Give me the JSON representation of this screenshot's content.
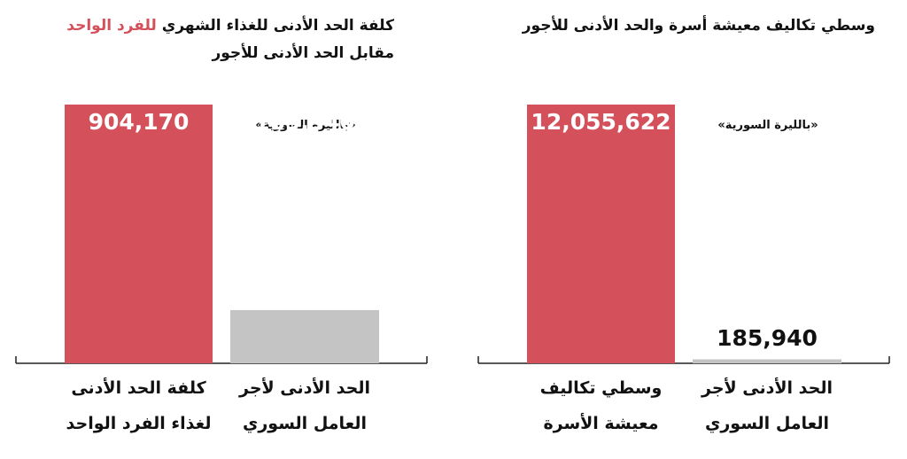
{
  "chart_data": [
    {
      "type": "bar",
      "title": [
        "كلفة الحد الأدنى للغذاء الشهري",
        "للفرد الواحد",
        "مقابل الحد الأدنى للأجور"
      ],
      "subtitle": "«بالليرة السورية»",
      "categories": [
        "كلفة الحد الأدنى\nلغذاء الفرد الواحد",
        "الحد الأدنى لأجر\nالعامل السوري"
      ],
      "values": [
        904170,
        185940
      ],
      "value_labels": [
        "904,170",
        "185,940"
      ],
      "colors": [
        "#d4505a",
        "#c4c4c4"
      ]
    },
    {
      "type": "bar",
      "title": "وسطي تكاليف معيشة أسرة والحد الأدنى للأجور",
      "subtitle": "«بالليرة السورية»",
      "categories": [
        "وسطي تكاليف\nمعيشة الأسرة",
        "الحد الأدنى لأجر\nالعامل السوري"
      ],
      "values": [
        12055622,
        185940
      ],
      "value_labels": [
        "12,055,622",
        "185,940"
      ],
      "colors": [
        "#d4505a",
        "#c4c4c4"
      ]
    }
  ]
}
